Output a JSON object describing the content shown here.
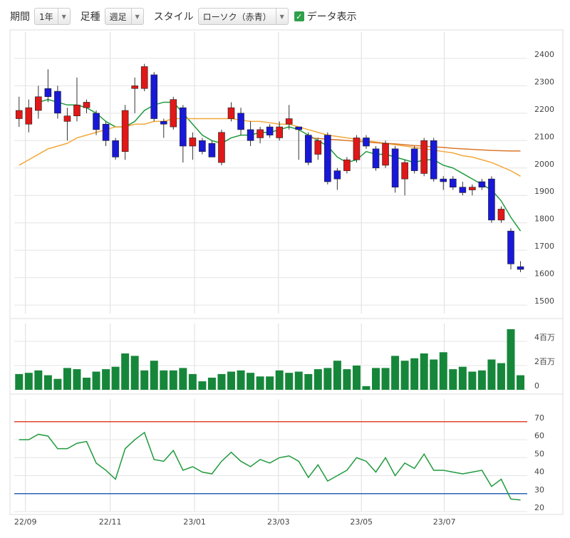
{
  "toolbar": {
    "period_label": "期間",
    "period_value": "1年",
    "type_label": "足種",
    "type_value": "週足",
    "style_label": "スタイル",
    "style_value": "ローソク（赤青）",
    "show_data": "データ表示",
    "show_data_checked": true
  },
  "chart_data": [
    {
      "type": "candlestick",
      "xlim": [
        -0.5,
        52.7
      ],
      "xticks": [
        {
          "value": 0.66,
          "label": "22/09"
        },
        {
          "value": 9.45,
          "label": "22/11"
        },
        {
          "value": 18.2,
          "label": "23/01"
        },
        {
          "value": 26.9,
          "label": "23/03"
        },
        {
          "value": 35.5,
          "label": "23/05"
        },
        {
          "value": 44.1,
          "label": "23/07"
        }
      ],
      "ylim": [
        1469,
        2496
      ],
      "yticks": [
        1500,
        1600,
        1700,
        1800,
        1900,
        2000,
        2100,
        2200,
        2300,
        2400
      ],
      "up_color": "#e01818",
      "down_color": "#1818d8",
      "open": [
        2180,
        2160,
        2210,
        2290,
        2280,
        2170,
        2190,
        2220,
        2200,
        2160,
        2100,
        2060,
        2290,
        2290,
        2340,
        2170,
        2150,
        2220,
        2080,
        2100,
        2090,
        2020,
        2180,
        2200,
        2140,
        2110,
        2150,
        2110,
        2160,
        2150,
        2120,
        2050,
        2120,
        1990,
        1990,
        2030,
        2110,
        2070,
        2010,
        2070,
        1960,
        2070,
        1980,
        2100,
        1960,
        1960,
        1930,
        1920,
        1950,
        1960,
        1810,
        1770,
        1640
      ],
      "high": [
        2260,
        2250,
        2300,
        2360,
        2300,
        2220,
        2330,
        2250,
        2210,
        2170,
        2110,
        2230,
        2330,
        2380,
        2350,
        2180,
        2260,
        2230,
        2130,
        2110,
        2100,
        2140,
        2240,
        2220,
        2170,
        2150,
        2160,
        2170,
        2230,
        2150,
        2130,
        2110,
        2130,
        2000,
        2040,
        2120,
        2120,
        2080,
        2100,
        2080,
        2030,
        2080,
        2110,
        2110,
        1970,
        1970,
        1950,
        1940,
        1960,
        1970,
        1860,
        1780,
        1660
      ],
      "low": [
        2150,
        2130,
        2180,
        2240,
        2180,
        2100,
        2170,
        2200,
        2120,
        2080,
        2030,
        2030,
        2200,
        2280,
        2170,
        2110,
        2140,
        2020,
        2030,
        2050,
        2040,
        2010,
        2170,
        2120,
        2080,
        2090,
        2110,
        2100,
        2140,
        2030,
        2010,
        2030,
        1940,
        1920,
        1980,
        2020,
        2070,
        1990,
        2000,
        1910,
        1900,
        1980,
        1970,
        1950,
        1920,
        1920,
        1900,
        1900,
        1920,
        1800,
        1800,
        1630,
        1620
      ],
      "close": [
        2210,
        2220,
        2260,
        2260,
        2200,
        2190,
        2230,
        2240,
        2140,
        2100,
        2040,
        2210,
        2300,
        2370,
        2180,
        2160,
        2250,
        2080,
        2110,
        2060,
        2040,
        2130,
        2220,
        2140,
        2100,
        2140,
        2120,
        2150,
        2180,
        2140,
        2020,
        2100,
        1950,
        1960,
        2030,
        2110,
        2080,
        2000,
        2090,
        1930,
        2020,
        1990,
        2100,
        1960,
        1950,
        1930,
        1910,
        1930,
        1930,
        1810,
        1850,
        1650,
        1630
      ],
      "series": [
        {
          "color": "#1f9a3c",
          "values": [
            null,
            null,
            2240,
            2250,
            2240,
            2230,
            2230,
            2220,
            2200,
            2170,
            2150,
            2150,
            2170,
            2210,
            2230,
            2240,
            2240,
            2200,
            2160,
            2120,
            2100,
            2090,
            2110,
            2120,
            2120,
            2130,
            2130,
            2140,
            2150,
            2140,
            2120,
            2100,
            2080,
            2040,
            2020,
            2030,
            2060,
            2050,
            2050,
            2040,
            2030,
            2020,
            2030,
            2030,
            2010,
            2000,
            1980,
            1960,
            1940,
            1920,
            1880,
            1820,
            1770
          ]
        },
        {
          "color": "#f2a83a",
          "values": [
            2010,
            2030,
            2050,
            2070,
            2080,
            2090,
            2110,
            2120,
            2130,
            2140,
            2150,
            2150,
            2160,
            2160,
            2170,
            2170,
            2180,
            2180,
            2180,
            2180,
            2180,
            2180,
            2180,
            2175,
            2170,
            2170,
            2165,
            2160,
            2160,
            2150,
            2140,
            2130,
            2120,
            2115,
            2110,
            2105,
            2100,
            2095,
            2090,
            2085,
            2080,
            2075,
            2070,
            2065,
            2060,
            2055,
            2045,
            2040,
            2030,
            2020,
            2005,
            1990,
            1970
          ]
        },
        {
          "color": "#d9782c",
          "values": [
            null,
            null,
            null,
            null,
            null,
            null,
            null,
            null,
            null,
            null,
            null,
            null,
            null,
            null,
            null,
            null,
            null,
            null,
            null,
            null,
            null,
            null,
            null,
            null,
            null,
            null,
            null,
            null,
            null,
            null,
            2110,
            2108,
            2105,
            2103,
            2100,
            2098,
            2095,
            2092,
            2090,
            2088,
            2085,
            2082,
            2080,
            2077,
            2075,
            2072,
            2070,
            2068,
            2066,
            2064,
            2063,
            2062,
            2062
          ]
        }
      ]
    },
    {
      "type": "bar",
      "color": "#16873a",
      "ylim": [
        0,
        5470000
      ],
      "yticks": [
        0,
        {
          "value": 2000000,
          "label": "2百万"
        },
        {
          "value": 4000000,
          "label": "4百万"
        }
      ],
      "values": [
        1300000,
        1400000,
        1600000,
        1200000,
        900000,
        1800000,
        1700000,
        1000000,
        1500000,
        1700000,
        1900000,
        3000000,
        2800000,
        1600000,
        2400000,
        1600000,
        1600000,
        1800000,
        1300000,
        700000,
        1000000,
        1300000,
        1500000,
        1600000,
        1400000,
        1100000,
        1100000,
        1600000,
        1400000,
        1500000,
        1300000,
        1700000,
        1800000,
        2400000,
        1700000,
        2000000,
        300000,
        1800000,
        1800000,
        2800000,
        2400000,
        2600000,
        3000000,
        2500000,
        3100000,
        1700000,
        1900000,
        1500000,
        1600000,
        2500000,
        2200000,
        5000000,
        1200000
      ]
    },
    {
      "type": "line",
      "ylim": [
        20,
        82.6
      ],
      "yticks": [
        20,
        30,
        40,
        50,
        60,
        70
      ],
      "hlines": [
        {
          "value": 70,
          "color": "#e0452a"
        },
        {
          "value": 30,
          "color": "#2a64b4"
        }
      ],
      "series": [
        {
          "color": "#1f9a3c",
          "values": [
            60,
            60,
            63,
            62,
            55,
            55,
            58,
            59,
            47,
            43,
            38,
            55,
            60,
            64,
            49,
            48,
            54,
            43,
            45,
            42,
            41,
            48,
            53,
            48,
            45,
            49,
            47,
            50,
            51,
            48,
            39,
            46,
            37,
            40,
            43,
            50,
            48,
            42,
            50,
            40,
            47,
            44,
            52,
            43,
            43,
            42,
            41,
            42,
            43,
            34,
            38,
            27,
            26.5
          ]
        }
      ]
    }
  ]
}
